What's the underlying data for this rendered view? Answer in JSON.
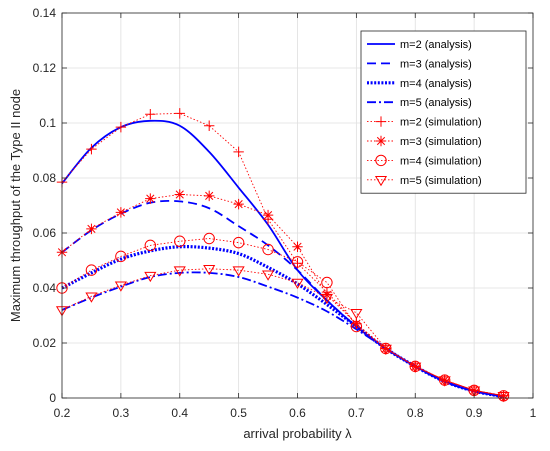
{
  "chart_data": {
    "type": "line",
    "xlabel": "arrival probability λ",
    "ylabel": "Maximum throughput of the Type II node",
    "xlim": [
      0.2,
      1.0
    ],
    "ylim": [
      0,
      0.14
    ],
    "xticks": [
      "0.2",
      "0.3",
      "0.4",
      "0.5",
      "0.6",
      "0.7",
      "0.8",
      "0.9",
      "1"
    ],
    "yticks": [
      "0",
      "0.02",
      "0.04",
      "0.06",
      "0.08",
      "0.1",
      "0.12",
      "0.14"
    ],
    "grid": true,
    "legend_position": "top-right",
    "analysis_x": [
      0.2,
      0.25,
      0.3,
      0.35,
      0.4,
      0.45,
      0.5,
      0.55,
      0.6,
      0.65,
      0.7,
      0.75,
      0.8,
      0.85,
      0.9,
      0.95
    ],
    "simulation_x": [
      0.2,
      0.25,
      0.3,
      0.35,
      0.4,
      0.45,
      0.5,
      0.55,
      0.6,
      0.65,
      0.7,
      0.75,
      0.8,
      0.85,
      0.9,
      0.95
    ],
    "series": [
      {
        "name": "m=2 (analysis)",
        "kind": "analysis",
        "color": "#0000FF",
        "dash": "solid",
        "values": [
          0.078,
          0.091,
          0.0985,
          0.1008,
          0.099,
          0.0895,
          0.0765,
          0.063,
          0.0465,
          0.0355,
          0.026,
          0.018,
          0.0115,
          0.006,
          0.0025,
          0.0005
        ]
      },
      {
        "name": "m=3 (analysis)",
        "kind": "analysis",
        "color": "#0000FF",
        "dash": "dashed",
        "values": [
          0.053,
          0.061,
          0.067,
          0.071,
          0.0715,
          0.069,
          0.0625,
          0.0555,
          0.0465,
          0.0355,
          0.026,
          0.018,
          0.0115,
          0.006,
          0.0025,
          0.0005
        ]
      },
      {
        "name": "m=4 (analysis)",
        "kind": "analysis",
        "color": "#0000FF",
        "dash": "dotted",
        "values": [
          0.04,
          0.0455,
          0.0505,
          0.0535,
          0.055,
          0.0545,
          0.0525,
          0.0475,
          0.0415,
          0.034,
          0.026,
          0.018,
          0.0115,
          0.006,
          0.0025,
          0.0005
        ]
      },
      {
        "name": "m=5 (analysis)",
        "kind": "analysis",
        "color": "#0000FF",
        "dash": "dashdot",
        "values": [
          0.032,
          0.0365,
          0.0405,
          0.044,
          0.0455,
          0.0455,
          0.044,
          0.0405,
          0.0365,
          0.0315,
          0.025,
          0.018,
          0.0115,
          0.006,
          0.0025,
          0.0005
        ]
      },
      {
        "name": "m=2 (simulation)",
        "kind": "simulation",
        "color": "#FF0000",
        "marker": "plus",
        "values": [
          0.0785,
          0.0905,
          0.0985,
          0.1032,
          0.1035,
          0.099,
          0.0895,
          0.065,
          0.049,
          0.0385,
          0.027,
          0.018,
          0.0115,
          0.0065,
          0.0028,
          0.0008
        ]
      },
      {
        "name": "m=3 (simulation)",
        "kind": "simulation",
        "color": "#FF0000",
        "marker": "star",
        "values": [
          0.053,
          0.0615,
          0.0675,
          0.0725,
          0.074,
          0.0735,
          0.0705,
          0.0665,
          0.055,
          0.0375,
          0.027,
          0.018,
          0.0115,
          0.0065,
          0.0028,
          0.0008
        ]
      },
      {
        "name": "m=4 (simulation)",
        "kind": "simulation",
        "color": "#FF0000",
        "marker": "circle",
        "values": [
          0.04,
          0.0465,
          0.0515,
          0.0555,
          0.057,
          0.058,
          0.0565,
          0.054,
          0.0495,
          0.042,
          0.026,
          0.018,
          0.0115,
          0.0065,
          0.0028,
          0.0008
        ]
      },
      {
        "name": "m=5 (simulation)",
        "kind": "simulation",
        "color": "#FF0000",
        "marker": "triangle-down",
        "values": [
          0.032,
          0.037,
          0.041,
          0.0445,
          0.0465,
          0.047,
          0.0465,
          0.045,
          0.042,
          0.0365,
          0.031,
          0.018,
          0.0115,
          0.0065,
          0.0028,
          0.0008
        ]
      }
    ]
  }
}
